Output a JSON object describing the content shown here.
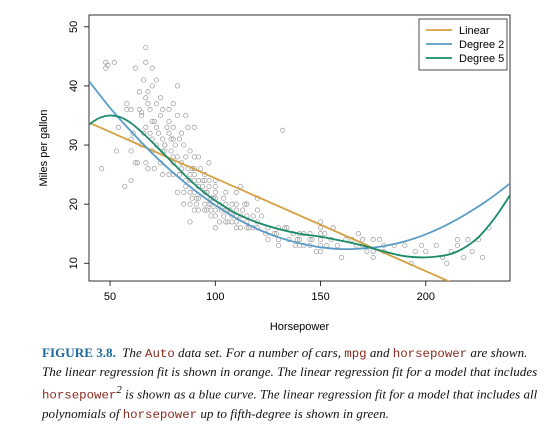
{
  "chart_data": {
    "type": "scatter",
    "title": "",
    "xlabel": "Horsepower",
    "ylabel": "Miles per gallon",
    "xlim": [
      40,
      240
    ],
    "ylim": [
      7,
      52
    ],
    "x_ticks": [
      50,
      100,
      150,
      200
    ],
    "y_ticks": [
      10,
      20,
      30,
      40,
      50
    ],
    "x_tick_labels": [
      "50",
      "100",
      "150",
      "200"
    ],
    "y_tick_labels": [
      "10",
      "20",
      "30",
      "40",
      "50"
    ],
    "grid": false,
    "legend_position": "top-right",
    "point_color": "#9a9a9a",
    "points": [
      [
        46,
        26
      ],
      [
        48,
        44
      ],
      [
        48,
        43
      ],
      [
        49,
        43.5
      ],
      [
        52,
        44
      ],
      [
        53,
        29
      ],
      [
        54,
        33
      ],
      [
        57,
        23
      ],
      [
        58,
        36
      ],
      [
        58,
        37
      ],
      [
        60,
        29
      ],
      [
        60,
        36
      ],
      [
        60,
        31
      ],
      [
        61,
        32
      ],
      [
        62,
        27
      ],
      [
        63,
        27
      ],
      [
        64,
        39
      ],
      [
        65,
        35
      ],
      [
        65,
        30
      ],
      [
        65,
        35.5
      ],
      [
        66,
        41
      ],
      [
        67,
        46.5
      ],
      [
        67,
        44
      ],
      [
        67,
        38
      ],
      [
        67,
        27
      ],
      [
        67,
        33
      ],
      [
        68,
        37
      ],
      [
        68,
        26
      ],
      [
        69,
        36
      ],
      [
        69,
        32
      ],
      [
        70,
        29
      ],
      [
        70,
        31
      ],
      [
        70,
        43
      ],
      [
        70,
        40
      ],
      [
        71,
        26
      ],
      [
        71,
        34
      ],
      [
        72,
        30
      ],
      [
        72,
        37
      ],
      [
        72,
        41
      ],
      [
        73,
        32
      ],
      [
        74,
        35
      ],
      [
        74,
        27
      ],
      [
        75,
        25
      ],
      [
        75,
        31
      ],
      [
        75,
        36
      ],
      [
        75,
        29
      ],
      [
        76,
        29
      ],
      [
        76,
        30
      ],
      [
        77,
        33
      ],
      [
        78,
        32
      ],
      [
        78,
        25
      ],
      [
        78,
        36
      ],
      [
        79,
        31
      ],
      [
        79,
        29
      ],
      [
        80,
        33
      ],
      [
        80,
        27
      ],
      [
        80,
        25
      ],
      [
        80,
        37
      ],
      [
        80,
        28
      ],
      [
        81,
        30
      ],
      [
        82,
        35
      ],
      [
        82,
        40
      ],
      [
        82,
        22
      ],
      [
        83,
        31
      ],
      [
        83,
        25
      ],
      [
        84,
        27
      ],
      [
        84,
        32
      ],
      [
        85,
        20
      ],
      [
        85,
        30
      ],
      [
        85,
        22
      ],
      [
        86,
        24
      ],
      [
        86,
        23
      ],
      [
        86,
        35
      ],
      [
        87,
        26
      ],
      [
        87,
        33
      ],
      [
        88,
        24
      ],
      [
        88,
        17
      ],
      [
        88,
        20
      ],
      [
        88,
        29
      ],
      [
        88,
        25
      ],
      [
        89,
        21
      ],
      [
        89,
        26
      ],
      [
        90,
        24
      ],
      [
        90,
        28
      ],
      [
        90,
        19
      ],
      [
        90,
        25
      ],
      [
        90,
        33
      ],
      [
        90,
        22
      ],
      [
        91,
        21
      ],
      [
        91,
        20
      ],
      [
        92,
        28
      ],
      [
        92,
        21
      ],
      [
        92,
        24
      ],
      [
        92,
        19
      ],
      [
        93,
        26
      ],
      [
        94,
        23
      ],
      [
        95,
        19
      ],
      [
        95,
        20
      ],
      [
        95,
        22
      ],
      [
        95,
        24
      ],
      [
        95,
        25
      ],
      [
        96,
        19
      ],
      [
        96,
        22
      ],
      [
        97,
        20
      ],
      [
        97,
        23
      ],
      [
        97,
        24
      ],
      [
        97,
        27
      ],
      [
        98,
        21
      ],
      [
        98,
        20
      ],
      [
        98,
        18
      ],
      [
        99,
        21
      ],
      [
        100,
        22
      ],
      [
        100,
        18
      ],
      [
        100,
        19
      ],
      [
        100,
        24
      ],
      [
        100,
        16
      ],
      [
        100,
        21
      ],
      [
        102,
        20
      ],
      [
        103,
        19
      ],
      [
        104,
        18
      ],
      [
        105,
        19
      ],
      [
        105,
        22
      ],
      [
        105,
        20
      ],
      [
        105,
        17
      ],
      [
        106,
        17
      ],
      [
        107,
        19
      ],
      [
        108,
        20
      ],
      [
        108,
        18
      ],
      [
        110,
        19
      ],
      [
        110,
        17
      ],
      [
        110,
        20
      ],
      [
        110,
        18
      ],
      [
        110,
        22
      ],
      [
        110,
        16
      ],
      [
        112,
        16
      ],
      [
        112,
        23
      ],
      [
        113,
        19
      ],
      [
        115,
        18
      ],
      [
        115,
        16
      ],
      [
        115,
        20
      ],
      [
        115,
        17
      ],
      [
        116,
        16
      ],
      [
        118,
        16
      ],
      [
        120,
        16
      ],
      [
        120,
        19
      ],
      [
        120,
        21
      ],
      [
        122,
        18
      ],
      [
        125,
        16
      ],
      [
        125,
        14
      ],
      [
        129,
        15
      ],
      [
        130,
        14
      ],
      [
        130,
        16
      ],
      [
        130,
        13
      ],
      [
        132,
        32.5
      ],
      [
        133,
        16
      ],
      [
        135,
        14
      ],
      [
        137,
        15
      ],
      [
        139,
        14
      ],
      [
        140,
        15
      ],
      [
        140,
        13
      ],
      [
        140,
        14
      ],
      [
        142,
        13
      ],
      [
        145,
        14
      ],
      [
        145,
        13
      ],
      [
        145,
        15
      ],
      [
        148,
        12
      ],
      [
        150,
        13
      ],
      [
        150,
        14
      ],
      [
        150,
        15
      ],
      [
        150,
        16
      ],
      [
        150,
        12
      ],
      [
        152,
        15
      ],
      [
        153,
        13
      ],
      [
        155,
        14
      ],
      [
        158,
        13
      ],
      [
        160,
        11
      ],
      [
        165,
        14
      ],
      [
        167,
        13
      ],
      [
        170,
        14
      ],
      [
        170,
        13
      ],
      [
        175,
        11
      ],
      [
        175,
        14
      ],
      [
        175,
        12
      ],
      [
        180,
        13
      ],
      [
        180,
        12
      ],
      [
        190,
        13
      ],
      [
        193,
        10
      ],
      [
        198,
        13
      ],
      [
        200,
        12
      ],
      [
        208,
        11
      ],
      [
        210,
        10
      ],
      [
        215,
        13
      ],
      [
        215,
        14
      ],
      [
        220,
        14
      ],
      [
        225,
        14
      ],
      [
        230,
        16
      ],
      [
        60,
        24
      ],
      [
        62,
        43
      ],
      [
        64,
        36
      ],
      [
        66,
        32
      ],
      [
        68,
        39
      ],
      [
        70,
        34
      ],
      [
        72,
        33
      ],
      [
        74,
        38
      ],
      [
        76,
        30
      ],
      [
        78,
        34
      ],
      [
        80,
        31
      ],
      [
        82,
        28
      ],
      [
        84,
        26
      ],
      [
        86,
        28
      ],
      [
        88,
        22
      ],
      [
        90,
        26
      ],
      [
        92,
        23
      ],
      [
        94,
        24
      ],
      [
        96,
        22
      ],
      [
        98,
        19
      ],
      [
        100,
        23
      ],
      [
        102,
        17
      ],
      [
        104,
        21
      ],
      [
        106,
        19
      ],
      [
        108,
        17
      ],
      [
        112,
        18
      ],
      [
        114,
        20
      ],
      [
        118,
        18
      ],
      [
        120,
        17
      ],
      [
        124,
        15
      ],
      [
        128,
        15
      ],
      [
        134,
        16
      ],
      [
        138,
        13
      ],
      [
        142,
        15
      ],
      [
        146,
        14
      ],
      [
        150,
        17
      ],
      [
        156,
        16
      ],
      [
        162,
        14
      ],
      [
        168,
        15
      ],
      [
        172,
        12
      ],
      [
        178,
        14
      ],
      [
        185,
        13
      ],
      [
        195,
        12
      ],
      [
        205,
        13
      ],
      [
        212,
        12
      ],
      [
        218,
        11
      ],
      [
        222,
        12
      ],
      [
        227,
        11
      ]
    ],
    "series": [
      {
        "name": "Linear",
        "color": "#d4a040",
        "x": [
          40,
          215
        ],
        "y": [
          33.8,
          6.3
        ]
      },
      {
        "name": "Degree 2",
        "color": "#5b9cc6",
        "x": [
          40,
          50,
          60,
          70,
          80,
          90,
          100,
          110,
          120,
          130,
          140,
          150,
          160,
          170,
          180,
          190,
          200,
          210,
          220,
          230,
          240
        ],
        "y": [
          40.8,
          36.3,
          32.3,
          28.6,
          25.3,
          22.4,
          19.8,
          17.6,
          15.8,
          14.4,
          13.4,
          12.7,
          12.4,
          12.5,
          12.9,
          13.7,
          14.9,
          16.5,
          18.5,
          20.8,
          23.5
        ]
      },
      {
        "name": "Degree 5",
        "color": "#1a8a6a",
        "x": [
          40,
          45,
          50,
          55,
          60,
          65,
          70,
          75,
          80,
          85,
          90,
          95,
          100,
          110,
          120,
          130,
          140,
          150,
          160,
          170,
          180,
          190,
          200,
          210,
          215,
          220,
          225,
          230,
          235,
          240
        ],
        "y": [
          33.5,
          34.6,
          35.0,
          34.7,
          33.7,
          32.2,
          30.5,
          28.7,
          26.9,
          25.1,
          23.4,
          21.9,
          20.6,
          18.4,
          16.9,
          15.8,
          15.0,
          14.5,
          13.8,
          13.0,
          12.0,
          11.2,
          11.0,
          11.4,
          12.0,
          13.0,
          14.4,
          16.4,
          18.8,
          21.5
        ]
      }
    ]
  },
  "caption": {
    "label": "FIGURE 3.8.",
    "p1": " The ",
    "c1": "Auto",
    "p2": " data set. For a number of cars, ",
    "c2": "mpg",
    "p3": " and ",
    "c3": "horsepower",
    "p4": " are shown. The linear regression fit is shown in orange. The linear regression fit for a model that includes ",
    "c4": "horsepower",
    "sup": "2",
    "p5": " is shown as a blue curve. The linear regression fit for a model that includes all polynomials of ",
    "c5": "horsepower",
    "p6": " up to fifth-degree is shown in green."
  }
}
